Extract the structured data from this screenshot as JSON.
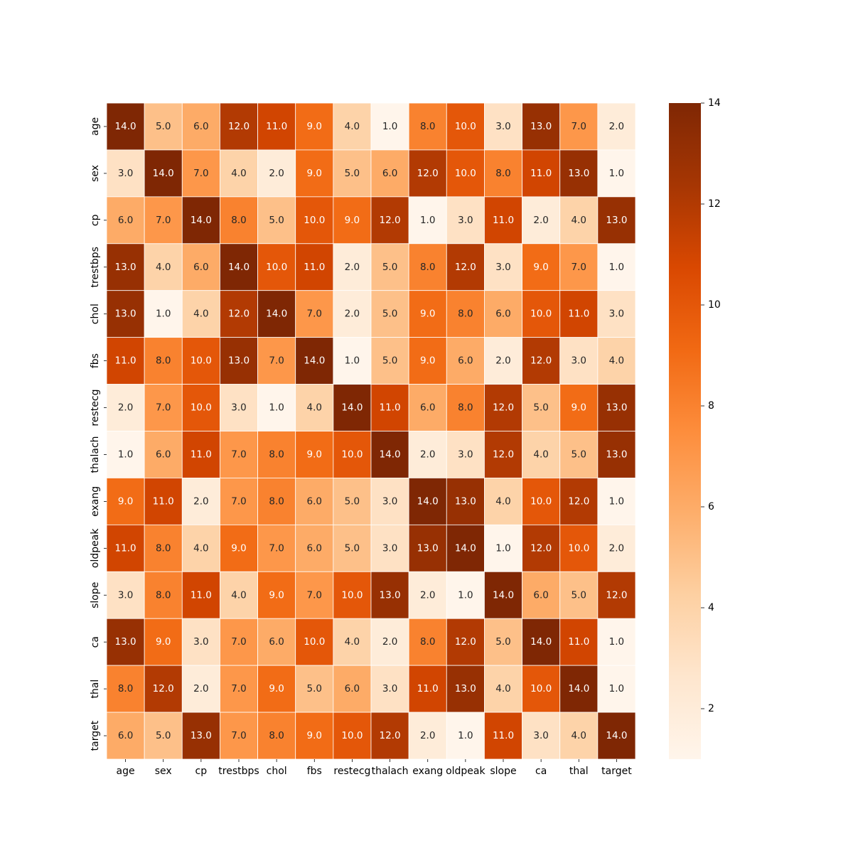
{
  "chart_data": {
    "type": "heatmap",
    "title": "",
    "xlabel": "",
    "ylabel": "",
    "x_labels": [
      "age",
      "sex",
      "cp",
      "trestbps",
      "chol",
      "fbs",
      "restecg",
      "thalach",
      "exang",
      "oldpeak",
      "slope",
      "ca",
      "thal",
      "target"
    ],
    "y_labels": [
      "age",
      "sex",
      "cp",
      "trestbps",
      "chol",
      "fbs",
      "restecg",
      "thalach",
      "exang",
      "oldpeak",
      "slope",
      "ca",
      "thal",
      "target"
    ],
    "values": [
      [
        14,
        5,
        6,
        12,
        11,
        9,
        4,
        1,
        8,
        10,
        3,
        13,
        7,
        2
      ],
      [
        3,
        14,
        7,
        4,
        2,
        9,
        5,
        6,
        12,
        10,
        8,
        11,
        13,
        1
      ],
      [
        6,
        7,
        14,
        8,
        5,
        10,
        9,
        12,
        1,
        3,
        11,
        2,
        4,
        13
      ],
      [
        13,
        4,
        6,
        14,
        10,
        11,
        2,
        5,
        8,
        12,
        3,
        9,
        7,
        1
      ],
      [
        13,
        1,
        4,
        12,
        14,
        7,
        2,
        5,
        9,
        8,
        6,
        10,
        11,
        3
      ],
      [
        11,
        8,
        10,
        13,
        7,
        14,
        1,
        5,
        9,
        6,
        2,
        12,
        3,
        4
      ],
      [
        2,
        7,
        10,
        3,
        1,
        4,
        14,
        11,
        6,
        8,
        12,
        5,
        9,
        13
      ],
      [
        1,
        6,
        11,
        7,
        8,
        9,
        10,
        14,
        2,
        3,
        12,
        4,
        5,
        13
      ],
      [
        9,
        11,
        2,
        7,
        8,
        6,
        5,
        3,
        14,
        13,
        4,
        10,
        12,
        1
      ],
      [
        11,
        8,
        4,
        9,
        7,
        6,
        5,
        3,
        13,
        14,
        1,
        12,
        10,
        2
      ],
      [
        3,
        8,
        11,
        4,
        9,
        7,
        10,
        13,
        2,
        1,
        14,
        6,
        5,
        12
      ],
      [
        13,
        9,
        3,
        7,
        6,
        10,
        4,
        2,
        8,
        12,
        5,
        14,
        11,
        1
      ],
      [
        8,
        12,
        2,
        7,
        9,
        5,
        6,
        3,
        11,
        13,
        4,
        10,
        14,
        1
      ],
      [
        6,
        5,
        13,
        7,
        8,
        9,
        10,
        12,
        2,
        1,
        11,
        3,
        4,
        14
      ]
    ],
    "annotation_format": "0.0",
    "colormap": "Oranges",
    "vmin": 1,
    "vmax": 14,
    "colorbar_ticks": [
      2,
      4,
      6,
      8,
      10,
      12,
      14
    ],
    "grid": false,
    "legend": "colorbar-right"
  }
}
